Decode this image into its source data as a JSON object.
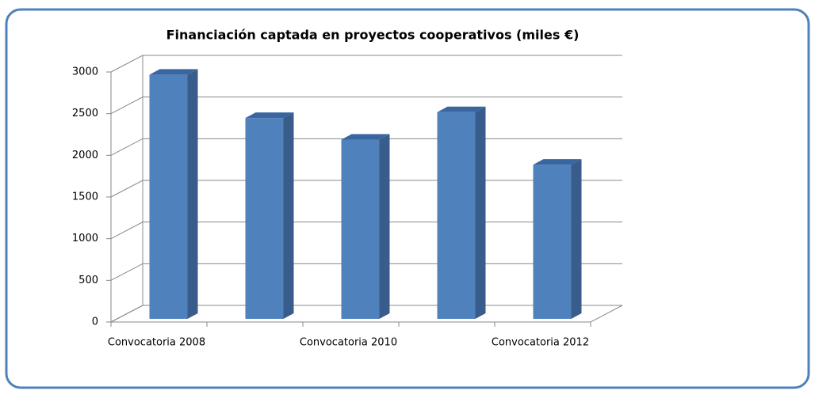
{
  "chart_data": {
    "type": "bar3d",
    "title": "Financiación captada en proyectos cooperativos (miles €)",
    "categories": [
      "Convocatoria 2008",
      null,
      "Convocatoria 2010",
      null,
      "Convocatoria 2012"
    ],
    "values": [
      2930,
      2410,
      2150,
      2480,
      1850
    ],
    "color": "#4f81bd",
    "ylim": [
      0,
      3000
    ],
    "yticks": [
      0,
      500,
      1000,
      1500,
      2000,
      2500,
      3000
    ],
    "grid": true
  }
}
